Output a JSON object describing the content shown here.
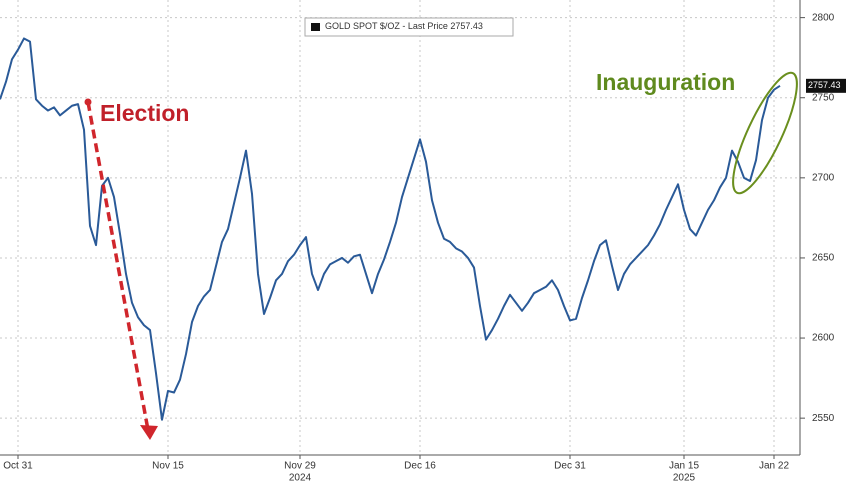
{
  "chart_data": {
    "type": "line",
    "legend": {
      "name": "GOLD SPOT $/OZ",
      "suffix": "- Last Price"
    },
    "last_price": 2757.43,
    "annotations": [
      "Election",
      "Inauguration"
    ],
    "categories": [
      null,
      null,
      null,
      "Oct 31",
      null,
      null,
      null,
      null,
      null,
      null,
      null,
      null,
      null,
      null,
      null,
      null,
      null,
      null,
      null,
      null,
      null,
      null,
      null,
      null,
      null,
      null,
      null,
      null,
      "Nov 15",
      null,
      null,
      null,
      null,
      null,
      null,
      null,
      null,
      null,
      null,
      null,
      null,
      null,
      null,
      null,
      null,
      null,
      null,
      null,
      null,
      null,
      "Nov 29",
      null,
      null,
      null,
      null,
      null,
      null,
      null,
      null,
      null,
      null,
      null,
      null,
      null,
      null,
      null,
      null,
      null,
      null,
      null,
      "Dec 16",
      null,
      null,
      null,
      null,
      null,
      null,
      null,
      null,
      null,
      null,
      null,
      null,
      null,
      null,
      null,
      null,
      null,
      null,
      null,
      null,
      null,
      null,
      null,
      null,
      "Dec 31",
      null,
      null,
      null,
      null,
      null,
      null,
      null,
      null,
      null,
      null,
      null,
      null,
      null,
      null,
      null,
      null,
      null,
      null,
      "Jan 15",
      null,
      null,
      null,
      null,
      null,
      null,
      null,
      null,
      null,
      null,
      null,
      null,
      null,
      null,
      "Jan 22",
      null
    ],
    "category_years": [
      null,
      null,
      null,
      null,
      null,
      null,
      null,
      null,
      null,
      null,
      null,
      null,
      null,
      null,
      null,
      null,
      null,
      null,
      null,
      null,
      null,
      null,
      null,
      null,
      null,
      null,
      null,
      null,
      null,
      null,
      null,
      null,
      null,
      null,
      null,
      null,
      null,
      null,
      null,
      null,
      null,
      null,
      null,
      null,
      null,
      null,
      null,
      null,
      null,
      null,
      "2024",
      null,
      null,
      null,
      null,
      null,
      null,
      null,
      null,
      null,
      null,
      null,
      null,
      null,
      null,
      null,
      null,
      null,
      null,
      null,
      null,
      null,
      null,
      null,
      null,
      null,
      null,
      null,
      null,
      null,
      null,
      null,
      null,
      null,
      null,
      null,
      null,
      null,
      null,
      null,
      null,
      null,
      null,
      null,
      null,
      null,
      null,
      null,
      null,
      null,
      null,
      null,
      null,
      null,
      null,
      null,
      null,
      null,
      null,
      null,
      null,
      null,
      null,
      null,
      "2025",
      null,
      null,
      null,
      null,
      null,
      null,
      null,
      null,
      null,
      null,
      null,
      null,
      null,
      null,
      null,
      null
    ],
    "series": [
      {
        "name": "GOLD SPOT $/OZ",
        "color": "#2a5a98",
        "values": [
          2749,
          2760,
          2774,
          2780,
          2787,
          2785,
          2749,
          2745,
          2742,
          2744,
          2739,
          2742,
          2745,
          2746,
          2730,
          2670,
          2658,
          2695,
          2700,
          2688,
          2665,
          2640,
          2622,
          2613,
          2608,
          2605,
          2578,
          2549,
          2567,
          2566,
          2574,
          2590,
          2610,
          2620,
          2626,
          2630,
          2645,
          2660,
          2668,
          2684,
          2700,
          2717,
          2690,
          2640,
          2615,
          2625,
          2636,
          2640,
          2648,
          2652,
          2658,
          2663,
          2640,
          2630,
          2640,
          2646,
          2648,
          2650,
          2647,
          2651,
          2652,
          2640,
          2628,
          2640,
          2649,
          2660,
          2672,
          2688,
          2700,
          2712,
          2724,
          2710,
          2686,
          2672,
          2662,
          2660,
          2656,
          2654,
          2650,
          2644,
          2620,
          2599,
          2605,
          2612,
          2620,
          2627,
          2622,
          2617,
          2622,
          2628,
          2630,
          2632,
          2636,
          2630,
          2620,
          2611,
          2612,
          2625,
          2636,
          2648,
          2658,
          2661,
          2645,
          2630,
          2640,
          2646,
          2650,
          2654,
          2658,
          2664,
          2671,
          2680,
          2688,
          2696,
          2680,
          2668,
          2664,
          2672,
          2680,
          2686,
          2694,
          2700,
          2717,
          2710,
          2700,
          2698,
          2711,
          2736,
          2750,
          2755,
          2757.43
        ]
      }
    ],
    "ylim": [
      2527,
      2811
    ],
    "yticks": [
      2550,
      2600,
      2650,
      2700,
      2750,
      2800
    ],
    "grid": true
  }
}
